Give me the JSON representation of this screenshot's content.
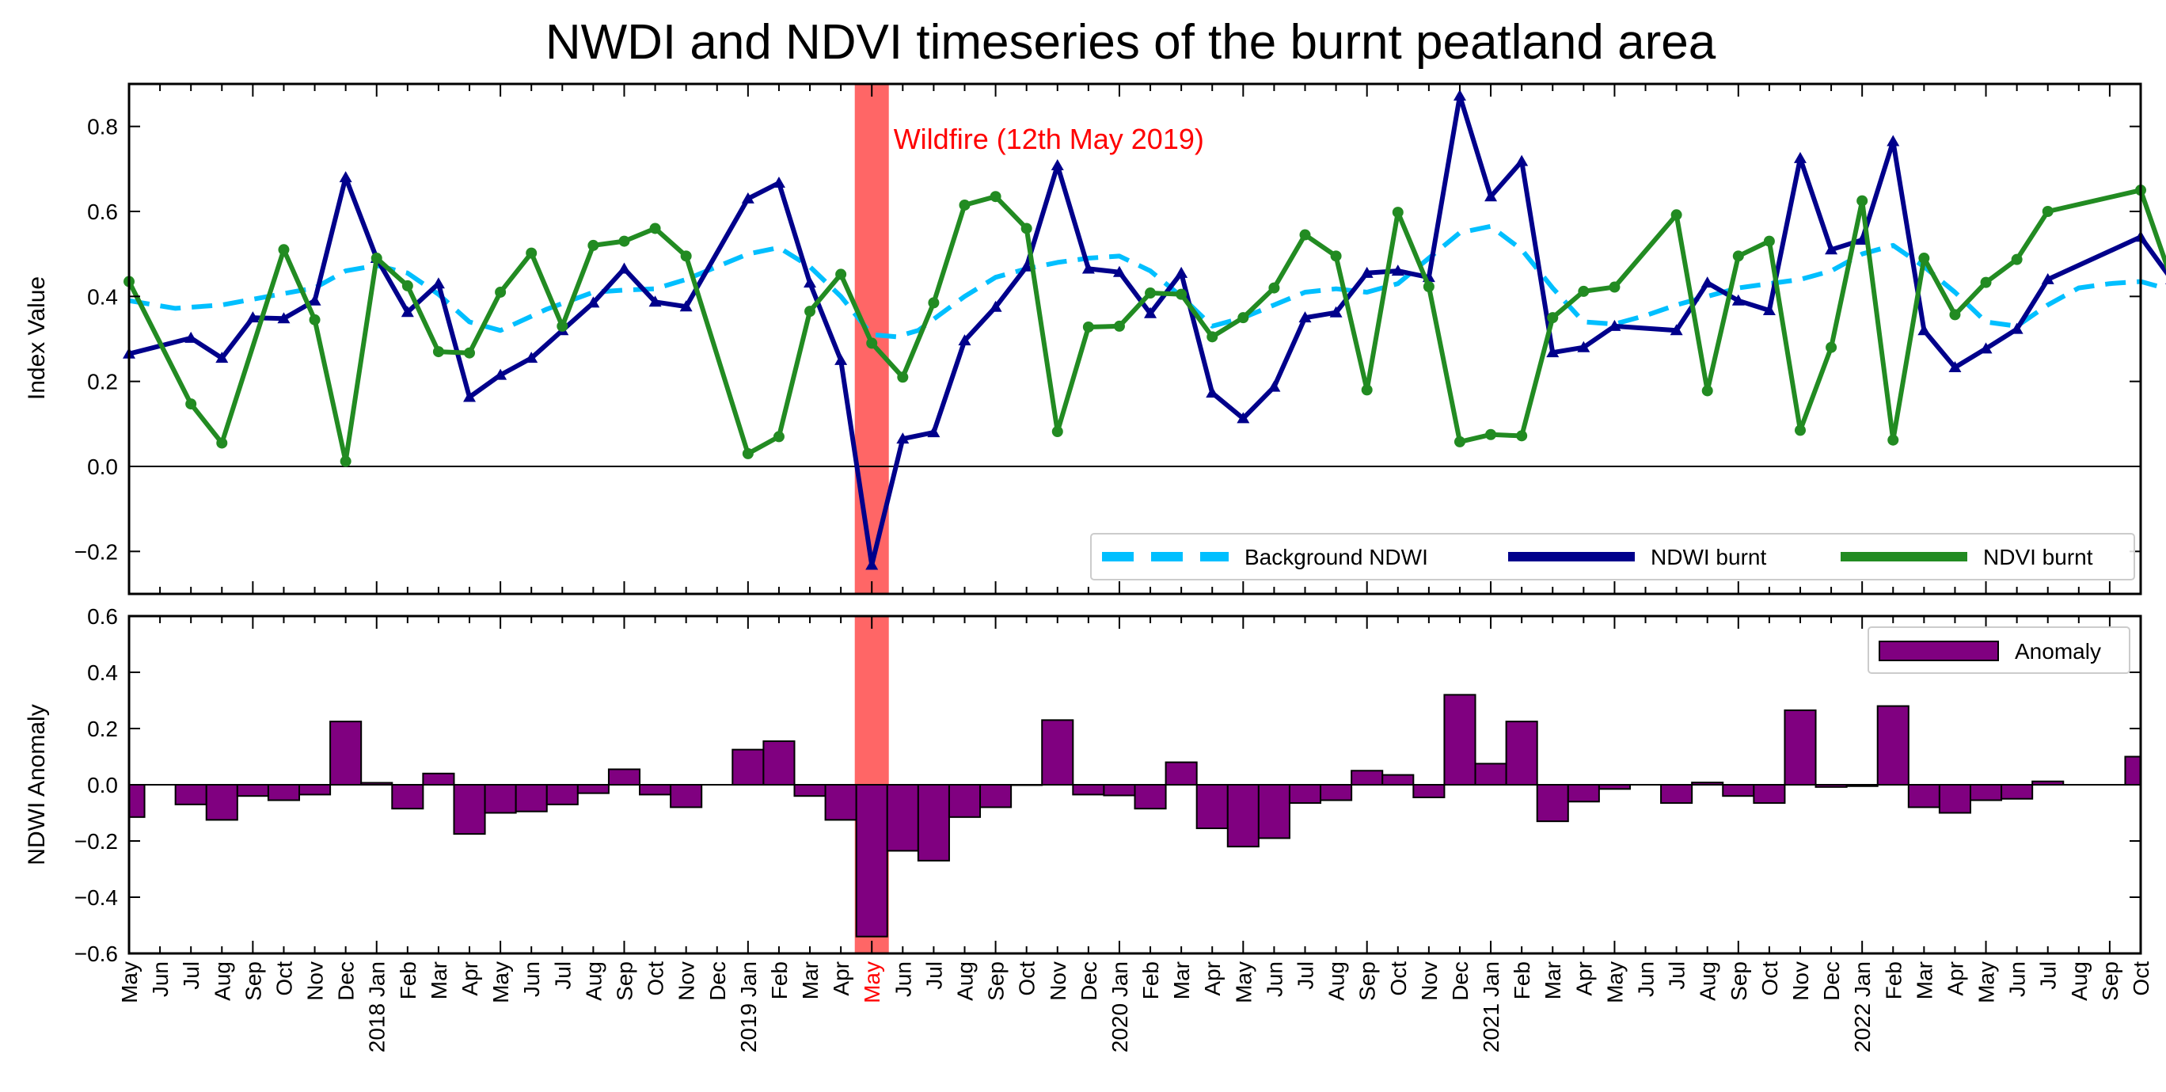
{
  "chart_data": {
    "type": "line",
    "title": "NWDI and NDVI timeseries of the burnt peatland area",
    "x_tick_labels": [
      "May",
      "Jun",
      "Jul",
      "Aug",
      "Sep",
      "Oct",
      "Nov",
      "Dec",
      "2018 Jan",
      "Feb",
      "Mar",
      "Apr",
      "May",
      "Jun",
      "Jul",
      "Aug",
      "Sep",
      "Oct",
      "Nov",
      "Dec",
      "2019 Jan",
      "Feb",
      "Mar",
      "Apr",
      "May",
      "Jun",
      "Jul",
      "Aug",
      "Sep",
      "Oct",
      "Nov",
      "Dec",
      "2020 Jan",
      "Feb",
      "Mar",
      "Apr",
      "May",
      "Jun",
      "Jul",
      "Aug",
      "Sep",
      "Oct",
      "Nov",
      "Dec",
      "2021 Jan",
      "Feb",
      "Mar",
      "Apr",
      "May",
      "Jun",
      "Jul",
      "Aug",
      "Sep",
      "Oct",
      "Nov",
      "Dec",
      "2022 Jan",
      "Feb",
      "Mar",
      "Apr",
      "May",
      "Jun",
      "Jul",
      "Aug",
      "Sep",
      "Oct"
    ],
    "highlight": {
      "x": 24.0,
      "width": 1.1,
      "label": "Wildfire (12th May 2019)",
      "tick_label": "May",
      "color": "#ff6666",
      "text_color": "#ff0000"
    },
    "top": {
      "ylabel": "Index Value",
      "ylim": [
        -0.3,
        0.9
      ],
      "yticks": [
        -0.2,
        0.0,
        0.2,
        0.4,
        0.6,
        0.8
      ],
      "ytick_labels": [
        "−0.2",
        "0.0",
        "0.2",
        "0.4",
        "0.6",
        "0.8"
      ],
      "legend": {
        "position": "lower-right",
        "entries": [
          "Background NDWI",
          "NDWI burnt",
          "NDVI burnt"
        ]
      },
      "series": [
        {
          "name": "Background NDWI",
          "style": "dashed",
          "color": "#00bfff",
          "points": [
            [
              0,
              0.39
            ],
            [
              1.5,
              0.372
            ],
            [
              3,
              0.38
            ],
            [
              4.5,
              0.4
            ],
            [
              6,
              0.42
            ],
            [
              7,
              0.46
            ],
            [
              8,
              0.473
            ],
            [
              9,
              0.455
            ],
            [
              10,
              0.405
            ],
            [
              11,
              0.34
            ],
            [
              12,
              0.32
            ],
            [
              13.5,
              0.37
            ],
            [
              15,
              0.41
            ],
            [
              16,
              0.415
            ],
            [
              17,
              0.418
            ],
            [
              18,
              0.44
            ],
            [
              19,
              0.47
            ],
            [
              20,
              0.5
            ],
            [
              21,
              0.515
            ],
            [
              22,
              0.47
            ],
            [
              23,
              0.4
            ],
            [
              24,
              0.31
            ],
            [
              24.8,
              0.305
            ],
            [
              25.5,
              0.32
            ],
            [
              27,
              0.4
            ],
            [
              28,
              0.445
            ],
            [
              29,
              0.465
            ],
            [
              30,
              0.48
            ],
            [
              31,
              0.49
            ],
            [
              32,
              0.495
            ],
            [
              33,
              0.46
            ],
            [
              34,
              0.4
            ],
            [
              35,
              0.33
            ],
            [
              36,
              0.35
            ],
            [
              37,
              0.38
            ],
            [
              38,
              0.41
            ],
            [
              39,
              0.418
            ],
            [
              40,
              0.41
            ],
            [
              41,
              0.43
            ],
            [
              42,
              0.49
            ],
            [
              43,
              0.55
            ],
            [
              44,
              0.565
            ],
            [
              45,
              0.51
            ],
            [
              46,
              0.42
            ],
            [
              47,
              0.34
            ],
            [
              48,
              0.335
            ],
            [
              49,
              0.355
            ],
            [
              50,
              0.38
            ],
            [
              51,
              0.4
            ],
            [
              52,
              0.42
            ],
            [
              53,
              0.43
            ],
            [
              54,
              0.44
            ],
            [
              55,
              0.46
            ],
            [
              56,
              0.5
            ],
            [
              57,
              0.52
            ],
            [
              58,
              0.47
            ],
            [
              59,
              0.41
            ],
            [
              60,
              0.34
            ],
            [
              61,
              0.33
            ],
            [
              62,
              0.38
            ],
            [
              63,
              0.42
            ],
            [
              64,
              0.43
            ],
            [
              65,
              0.435
            ],
            [
              66,
              0.415
            ]
          ]
        },
        {
          "name": "NDWI burnt",
          "style": "solid",
          "marker": "triangle",
          "color": "#00008b",
          "points": [
            [
              0,
              0.265
            ],
            [
              2,
              0.302
            ],
            [
              3,
              0.255
            ],
            [
              4,
              0.35
            ],
            [
              5,
              0.348
            ],
            [
              6,
              0.39
            ],
            [
              7,
              0.68
            ],
            [
              8,
              0.49
            ],
            [
              9,
              0.363
            ],
            [
              10,
              0.43
            ],
            [
              11,
              0.163
            ],
            [
              12,
              0.215
            ],
            [
              13,
              0.255
            ],
            [
              14,
              0.32
            ],
            [
              15,
              0.385
            ],
            [
              16,
              0.465
            ],
            [
              17,
              0.387
            ],
            [
              18,
              0.376
            ],
            [
              20,
              0.63
            ],
            [
              21,
              0.667
            ],
            [
              22,
              0.432
            ],
            [
              23,
              0.25
            ],
            [
              24,
              -0.232
            ],
            [
              25,
              0.065
            ],
            [
              26,
              0.08
            ],
            [
              27,
              0.296
            ],
            [
              28,
              0.375
            ],
            [
              29,
              0.47
            ],
            [
              30,
              0.708
            ],
            [
              31,
              0.465
            ],
            [
              32,
              0.457
            ],
            [
              33,
              0.36
            ],
            [
              34,
              0.455
            ],
            [
              35,
              0.173
            ],
            [
              36,
              0.113
            ],
            [
              37,
              0.187
            ],
            [
              38,
              0.35
            ],
            [
              39,
              0.362
            ],
            [
              40,
              0.455
            ],
            [
              41,
              0.46
            ],
            [
              42,
              0.445
            ],
            [
              43,
              0.872
            ],
            [
              44,
              0.635
            ],
            [
              45,
              0.718
            ],
            [
              46,
              0.268
            ],
            [
              47,
              0.28
            ],
            [
              48,
              0.33
            ],
            [
              50,
              0.32
            ],
            [
              51,
              0.432
            ],
            [
              52,
              0.39
            ],
            [
              53,
              0.367
            ],
            [
              54,
              0.725
            ],
            [
              55,
              0.51
            ],
            [
              56,
              0.533
            ],
            [
              57,
              0.765
            ],
            [
              58,
              0.32
            ],
            [
              59,
              0.233
            ],
            [
              60,
              0.277
            ],
            [
              61,
              0.323
            ],
            [
              62,
              0.44
            ],
            [
              65,
              0.54
            ],
            [
              66,
              0.44
            ]
          ]
        },
        {
          "name": "NDVI burnt",
          "style": "solid",
          "marker": "circle",
          "color": "#228b22",
          "points": [
            [
              0,
              0.435
            ],
            [
              2,
              0.147
            ],
            [
              3,
              0.055
            ],
            [
              5,
              0.51
            ],
            [
              6,
              0.345
            ],
            [
              7,
              0.012
            ],
            [
              8,
              0.49
            ],
            [
              9,
              0.425
            ],
            [
              10,
              0.27
            ],
            [
              11,
              0.267
            ],
            [
              12,
              0.41
            ],
            [
              13,
              0.502
            ],
            [
              14,
              0.33
            ],
            [
              15,
              0.52
            ],
            [
              16,
              0.53
            ],
            [
              17,
              0.56
            ],
            [
              18,
              0.495
            ],
            [
              20,
              0.03
            ],
            [
              21,
              0.07
            ],
            [
              22,
              0.365
            ],
            [
              23,
              0.452
            ],
            [
              24,
              0.29
            ],
            [
              25,
              0.21
            ],
            [
              26,
              0.385
            ],
            [
              27,
              0.615
            ],
            [
              28,
              0.635
            ],
            [
              29,
              0.56
            ],
            [
              30,
              0.082
            ],
            [
              31,
              0.328
            ],
            [
              32,
              0.33
            ],
            [
              33,
              0.408
            ],
            [
              34,
              0.405
            ],
            [
              35,
              0.305
            ],
            [
              36,
              0.35
            ],
            [
              37,
              0.42
            ],
            [
              38,
              0.545
            ],
            [
              39,
              0.495
            ],
            [
              40,
              0.18
            ],
            [
              41,
              0.598
            ],
            [
              42,
              0.423
            ],
            [
              43,
              0.058
            ],
            [
              44,
              0.075
            ],
            [
              45,
              0.072
            ],
            [
              46,
              0.35
            ],
            [
              47,
              0.412
            ],
            [
              48,
              0.422
            ],
            [
              50,
              0.592
            ],
            [
              51,
              0.178
            ],
            [
              52,
              0.495
            ],
            [
              53,
              0.53
            ],
            [
              54,
              0.085
            ],
            [
              55,
              0.28
            ],
            [
              56,
              0.625
            ],
            [
              57,
              0.062
            ],
            [
              58,
              0.49
            ],
            [
              59,
              0.357
            ],
            [
              60,
              0.433
            ],
            [
              61,
              0.487
            ],
            [
              62,
              0.6
            ],
            [
              65,
              0.65
            ],
            [
              66,
              0.44
            ]
          ]
        }
      ]
    },
    "bottom": {
      "type": "bar",
      "ylabel": "NDWI Anomaly",
      "ylim": [
        -0.6,
        0.6
      ],
      "yticks": [
        -0.6,
        -0.4,
        -0.2,
        0.0,
        0.2,
        0.4,
        0.6
      ],
      "ytick_labels": [
        "−0.6",
        "−0.4",
        "−0.2",
        "0.0",
        "0.2",
        "0.4",
        "0.6"
      ],
      "legend": {
        "position": "top-right",
        "entries": [
          "Anomaly"
        ]
      },
      "series": [
        {
          "name": "Anomaly",
          "color": "#800080",
          "x": [
            0,
            2,
            3,
            4,
            5,
            6,
            7,
            8,
            9,
            10,
            11,
            12,
            13,
            14,
            15,
            16,
            17,
            18,
            20,
            21,
            22,
            23,
            24,
            25,
            26,
            27,
            28,
            29,
            30,
            31,
            32,
            33,
            34,
            35,
            36,
            37,
            38,
            39,
            40,
            41,
            42,
            43,
            44,
            45,
            46,
            47,
            48,
            50,
            51,
            52,
            53,
            54,
            55,
            56,
            57,
            58,
            59,
            60,
            61,
            62,
            65,
            66
          ],
          "values": [
            -0.115,
            -0.07,
            -0.125,
            -0.04,
            -0.055,
            -0.035,
            0.225,
            0.007,
            -0.085,
            0.04,
            -0.175,
            -0.1,
            -0.095,
            -0.07,
            -0.03,
            0.055,
            -0.035,
            -0.08,
            0.125,
            0.155,
            -0.04,
            -0.125,
            -0.54,
            -0.235,
            -0.27,
            -0.115,
            -0.08,
            0.0,
            0.23,
            -0.035,
            -0.038,
            -0.085,
            0.08,
            -0.155,
            -0.22,
            -0.19,
            -0.065,
            -0.055,
            0.05,
            0.035,
            -0.045,
            0.32,
            0.075,
            0.225,
            -0.13,
            -0.06,
            -0.015,
            -0.065,
            0.008,
            -0.04,
            -0.065,
            0.265,
            -0.008,
            -0.005,
            0.28,
            -0.08,
            -0.1,
            -0.055,
            -0.05,
            0.012,
            0.1,
            0.03
          ]
        }
      ]
    }
  }
}
